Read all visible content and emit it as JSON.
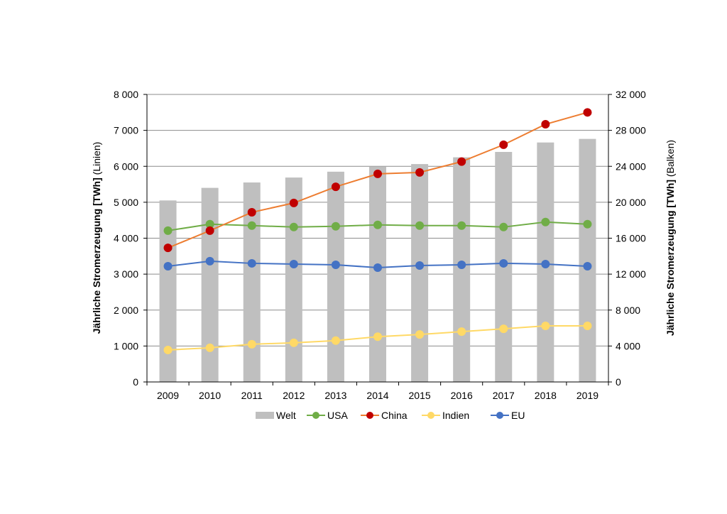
{
  "chart_data": {
    "type": "bar+line",
    "categories": [
      "2009",
      "2010",
      "2011",
      "2012",
      "2013",
      "2014",
      "2015",
      "2016",
      "2017",
      "2018",
      "2019"
    ],
    "left_axis": {
      "label_bold": "Jährliche Stromerzeugung [TWh]",
      "label_normal": " (Linien)",
      "ylim": [
        0,
        8000
      ],
      "ticks": [
        "0",
        "1 000",
        "2 000",
        "3 000",
        "4 000",
        "5 000",
        "6 000",
        "7 000",
        "8 000"
      ]
    },
    "right_axis": {
      "label_bold": "Jährliche Stromerzeugung [TWh]",
      "label_normal": " (Balken)",
      "ylim": [
        0,
        32000
      ],
      "ticks": [
        "0",
        "4 000",
        "8 000",
        "12 000",
        "16 000",
        "20 000",
        "24 000",
        "28 000",
        "32 000"
      ]
    },
    "bars": {
      "name": "Welt",
      "color": "#bfbfbf",
      "axis": "right",
      "values": [
        20200,
        21600,
        22200,
        22750,
        23400,
        23950,
        24250,
        25000,
        25600,
        26650,
        27050
      ]
    },
    "series": [
      {
        "name": "USA",
        "line": "#70ad47",
        "marker": "#70ad47",
        "values": [
          4210,
          4390,
          4350,
          4310,
          4330,
          4370,
          4350,
          4350,
          4310,
          4450,
          4390
        ]
      },
      {
        "name": "China",
        "line": "#ed7d31",
        "marker": "#c00000",
        "values": [
          3730,
          4210,
          4720,
          4980,
          5430,
          5790,
          5830,
          6130,
          6600,
          7170,
          7500
        ]
      },
      {
        "name": "Indien",
        "line": "#ffd966",
        "marker": "#ffd966",
        "values": [
          890,
          950,
          1050,
          1090,
          1150,
          1260,
          1320,
          1400,
          1480,
          1560,
          1560
        ]
      },
      {
        "name": "EU",
        "line": "#4472c4",
        "marker": "#4472c4",
        "values": [
          3220,
          3360,
          3300,
          3280,
          3260,
          3180,
          3240,
          3260,
          3300,
          3280,
          3220
        ]
      }
    ],
    "grid": true,
    "legend": "bottom"
  }
}
